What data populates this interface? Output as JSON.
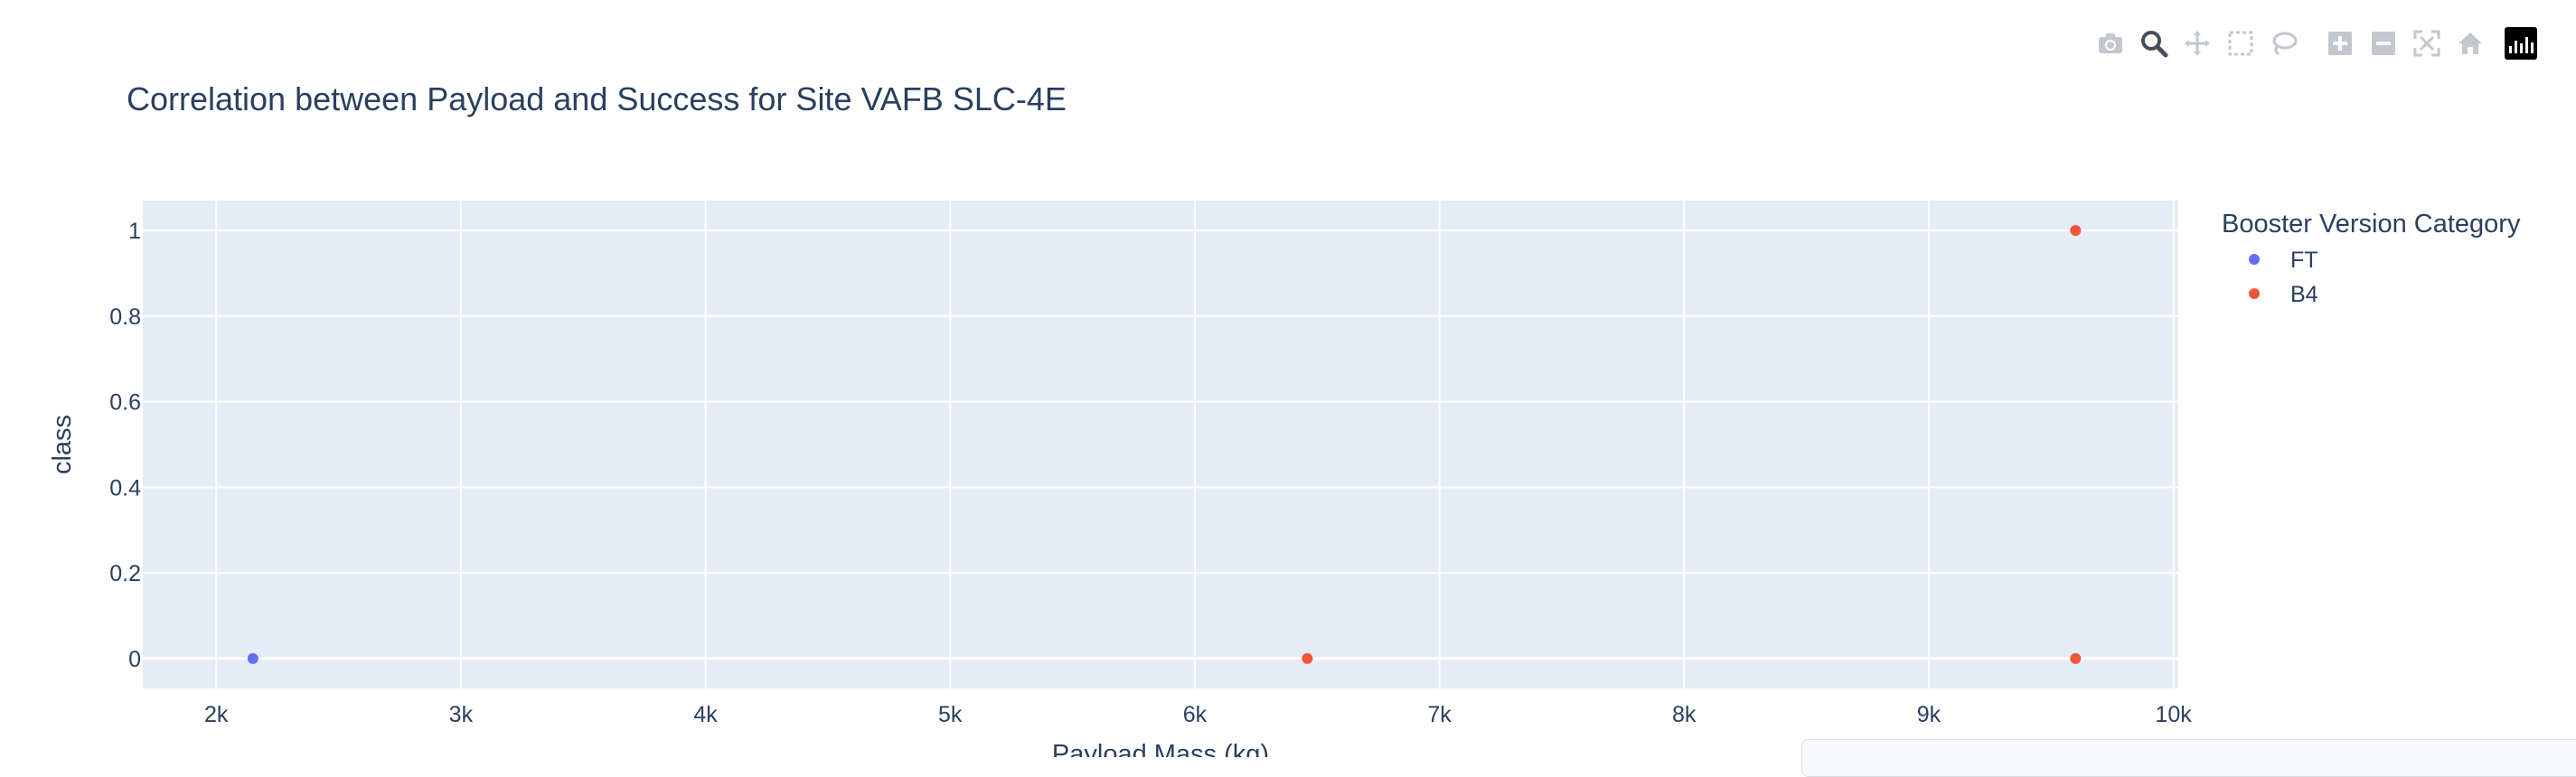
{
  "chart_data": {
    "type": "scatter",
    "title": "Correlation between Payload and Success for Site VAFB SLC-4E",
    "xlabel": "Payload Mass (kg)",
    "ylabel": "class",
    "xlim": [
      1700,
      10020
    ],
    "ylim": [
      -0.07,
      1.07
    ],
    "xticks": [
      2000,
      3000,
      4000,
      5000,
      6000,
      7000,
      8000,
      9000,
      10000
    ],
    "xtick_labels": [
      "2k",
      "3k",
      "4k",
      "5k",
      "6k",
      "7k",
      "8k",
      "9k",
      "10k"
    ],
    "yticks": [
      0,
      0.2,
      0.4,
      0.6,
      0.8,
      1
    ],
    "ytick_labels": [
      "0",
      "0.2",
      "0.4",
      "0.6",
      "0.8",
      "1"
    ],
    "grid": true,
    "legend_title": "Booster Version Category",
    "legend_position": "right",
    "series": [
      {
        "name": "FT",
        "color": "#636efa",
        "points": [
          {
            "x": 2150,
            "y": 0
          }
        ]
      },
      {
        "name": "B4",
        "color": "#ef553b",
        "points": [
          {
            "x": 6460,
            "y": 0
          },
          {
            "x": 9600,
            "y": 1
          },
          {
            "x": 9600,
            "y": 0
          }
        ]
      }
    ]
  },
  "colors": {
    "plot_background": "#e5ecf6",
    "grid": "#ffffff",
    "text": "#2a3f5f"
  },
  "modebar": {
    "buttons": [
      "camera-icon",
      "zoom-icon",
      "pan-icon",
      "box-select-icon",
      "lasso-icon",
      "zoom-in-icon",
      "zoom-out-icon",
      "autoscale-icon",
      "reset-axes-icon",
      "plotly-logo-icon"
    ],
    "active": "zoom-icon"
  }
}
